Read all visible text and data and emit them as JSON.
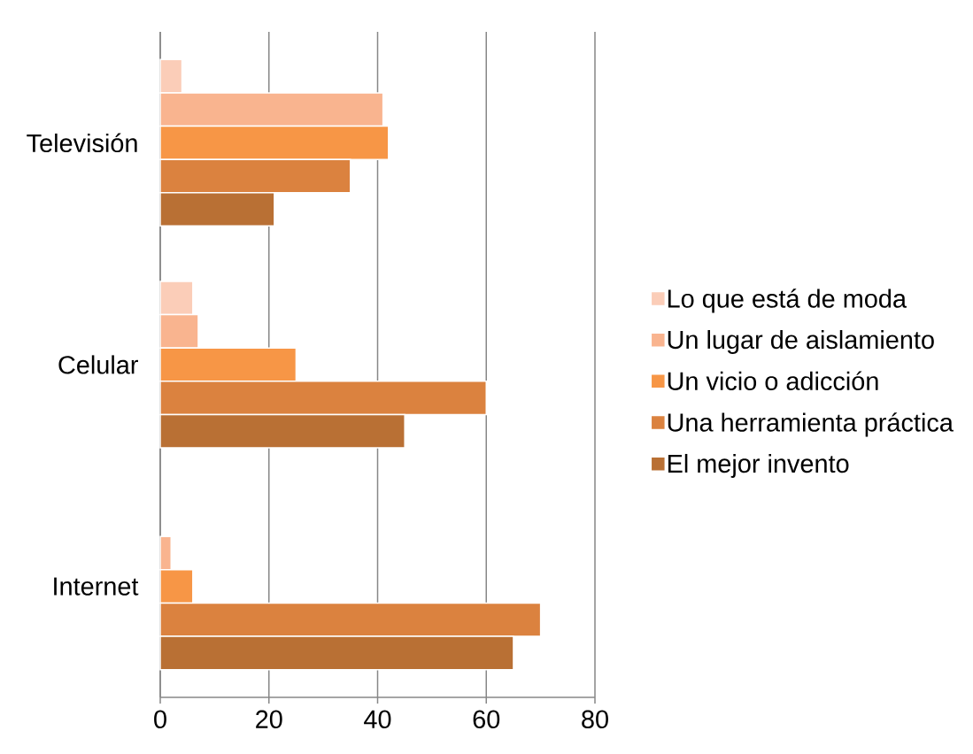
{
  "chart_data": {
    "type": "bar",
    "orientation": "horizontal",
    "categories": [
      "Televisión",
      "Celular",
      "Internet"
    ],
    "series": [
      {
        "name": "Lo que está de moda",
        "color": "#fbcdb8",
        "values": [
          4,
          6,
          null
        ]
      },
      {
        "name": "Un lugar de aislamiento",
        "color": "#f9b48f",
        "values": [
          41,
          7,
          2
        ]
      },
      {
        "name": "Un vicio o adicción",
        "color": "#f79646",
        "values": [
          42,
          25,
          6
        ]
      },
      {
        "name": "Una herramienta práctica",
        "color": "#db823f",
        "values": [
          35,
          60,
          70
        ]
      },
      {
        "name": "El mejor invento",
        "color": "#b97034",
        "values": [
          21,
          45,
          65
        ]
      }
    ],
    "xlim": [
      0,
      80
    ],
    "xticks": [
      0,
      20,
      40,
      60,
      80
    ],
    "grid": "x",
    "legend": "right"
  }
}
